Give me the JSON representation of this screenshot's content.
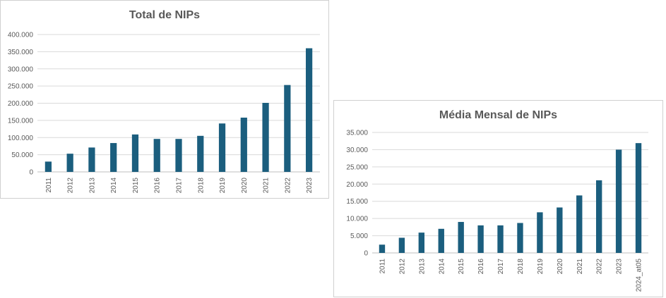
{
  "chart_data": [
    {
      "type": "bar",
      "title": "Total de NIPs",
      "categories": [
        "2011",
        "2012",
        "2013",
        "2014",
        "2015",
        "2016",
        "2017",
        "2018",
        "2019",
        "2020",
        "2021",
        "2022",
        "2023"
      ],
      "values": [
        30000,
        53000,
        71000,
        84000,
        109000,
        96000,
        96000,
        105000,
        141000,
        158000,
        201000,
        253000,
        360000
      ],
      "ylim": [
        0,
        400000
      ],
      "yticks": [
        "0",
        "50.000",
        "100.000",
        "150.000",
        "200.000",
        "250.000",
        "300.000",
        "350.000",
        "400.000"
      ],
      "grid": true,
      "bar_color": "#1b5e7e"
    },
    {
      "type": "bar",
      "title": "Média Mensal de NIPs",
      "categories": [
        "2011",
        "2012",
        "2013",
        "2014",
        "2015",
        "2016",
        "2017",
        "2018",
        "2019",
        "2020",
        "2021",
        "2022",
        "2023",
        "2024_at05"
      ],
      "values": [
        2400,
        4400,
        5900,
        7000,
        9000,
        8000,
        8000,
        8700,
        11800,
        13200,
        16700,
        21100,
        30000,
        31900
      ],
      "ylim": [
        0,
        35000
      ],
      "yticks": [
        "0",
        "5.000",
        "10.000",
        "15.000",
        "20.000",
        "25.000",
        "30.000",
        "35.000"
      ],
      "grid": true,
      "bar_color": "#1b5e7e"
    }
  ]
}
